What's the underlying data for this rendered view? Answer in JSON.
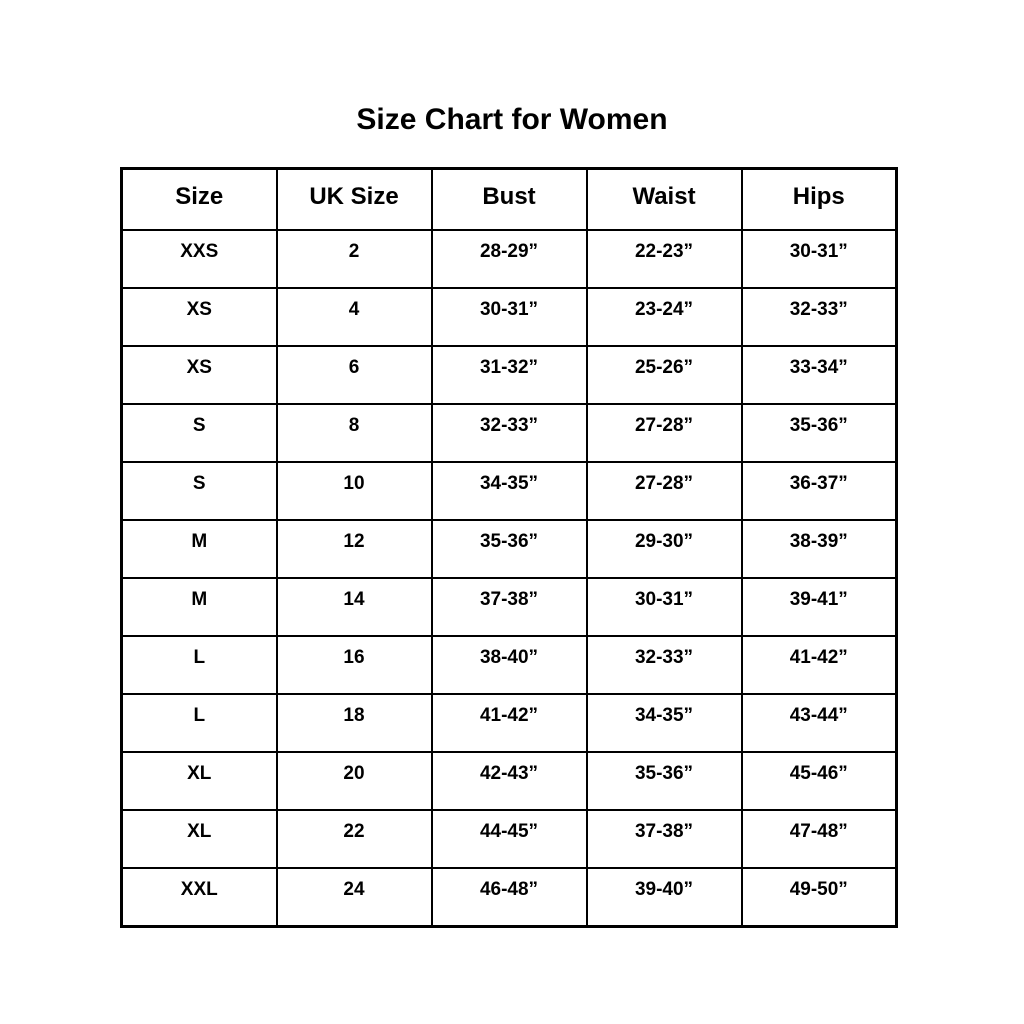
{
  "page": {
    "title": "Size Chart for Women"
  },
  "colors": {
    "background": "#ffffff",
    "text": "#000000",
    "border": "#000000"
  },
  "chart_data": {
    "type": "table",
    "title": "Size Chart for Women",
    "columns": [
      "Size",
      "UK Size",
      "Bust",
      "Waist",
      "Hips"
    ],
    "rows": [
      [
        "XXS",
        "2",
        "28-29”",
        "22-23”",
        "30-31”"
      ],
      [
        "XS",
        "4",
        "30-31”",
        "23-24”",
        "32-33”"
      ],
      [
        "XS",
        "6",
        "31-32”",
        "25-26”",
        "33-34”"
      ],
      [
        "S",
        "8",
        "32-33”",
        "27-28”",
        "35-36”"
      ],
      [
        "S",
        "10",
        "34-35”",
        "27-28”",
        "36-37”"
      ],
      [
        "M",
        "12",
        "35-36”",
        "29-30”",
        "38-39”"
      ],
      [
        "M",
        "14",
        "37-38”",
        "30-31”",
        "39-41”"
      ],
      [
        "L",
        "16",
        "38-40”",
        "32-33”",
        "41-42”"
      ],
      [
        "L",
        "18",
        "41-42”",
        "34-35”",
        "43-44”"
      ],
      [
        "XL",
        "20",
        "42-43”",
        "35-36”",
        "45-46”"
      ],
      [
        "XL",
        "22",
        "44-45”",
        "37-38”",
        "47-48”"
      ],
      [
        "XXL",
        "24",
        "46-48”",
        "39-40”",
        "49-50”"
      ]
    ]
  }
}
